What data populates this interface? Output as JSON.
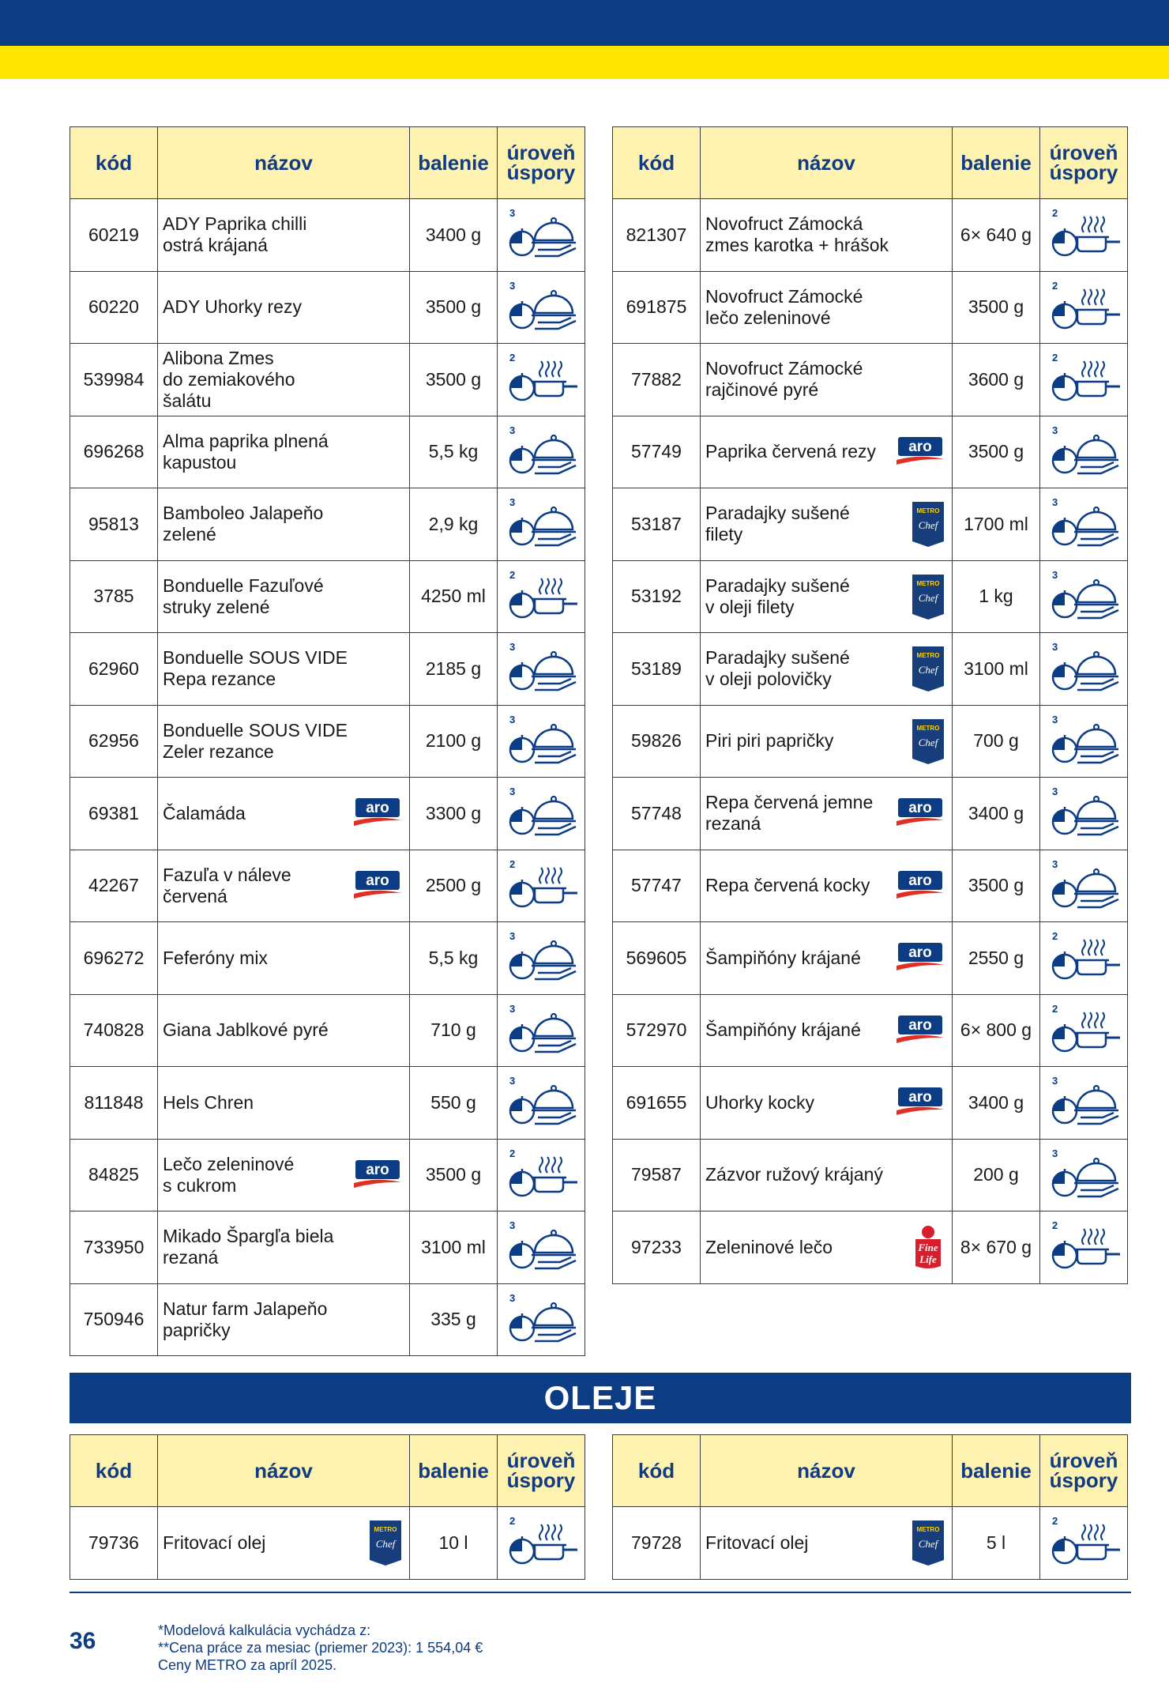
{
  "headers": {
    "code": "kód",
    "name": "názov",
    "pack": "balenie",
    "level": "úroveň\núspory"
  },
  "section_title": "OLEJE",
  "left_rows": [
    {
      "code": "60219",
      "name": "ADY Paprika chilli\nostrá krájaná",
      "pack": "3400 g",
      "level": "3",
      "brand": ""
    },
    {
      "code": "60220",
      "name": "ADY Uhorky rezy",
      "pack": "3500 g",
      "level": "3",
      "brand": ""
    },
    {
      "code": "539984",
      "name": "Alibona Zmes\ndo zemiakového\nšalátu",
      "pack": "3500 g",
      "level": "2",
      "brand": ""
    },
    {
      "code": "696268",
      "name": "Alma paprika plnená\nkapustou",
      "pack": "5,5 kg",
      "level": "3",
      "brand": ""
    },
    {
      "code": "95813",
      "name": "Bamboleo Jalapeňo\nzelené",
      "pack": "2,9 kg",
      "level": "3",
      "brand": ""
    },
    {
      "code": "3785",
      "name": "Bonduelle Fazuľové\nstruky zelené",
      "pack": "4250 ml",
      "level": "2",
      "brand": ""
    },
    {
      "code": "62960",
      "name": "Bonduelle SOUS VIDE\nRepa rezance",
      "pack": "2185 g",
      "level": "3",
      "brand": ""
    },
    {
      "code": "62956",
      "name": "Bonduelle SOUS VIDE\nZeler rezance",
      "pack": "2100 g",
      "level": "3",
      "brand": ""
    },
    {
      "code": "69381",
      "name": "Čalamáda",
      "pack": "3300 g",
      "level": "3",
      "brand": "aro"
    },
    {
      "code": "42267",
      "name": "Fazuľa v náleve\nčervená",
      "pack": "2500 g",
      "level": "2",
      "brand": "aro"
    },
    {
      "code": "696272",
      "name": "Feferóny mix",
      "pack": "5,5 kg",
      "level": "3",
      "brand": ""
    },
    {
      "code": "740828",
      "name": "Giana Jablkové pyré",
      "pack": "710 g",
      "level": "3",
      "brand": ""
    },
    {
      "code": "811848",
      "name": "Hels Chren",
      "pack": "550 g",
      "level": "3",
      "brand": ""
    },
    {
      "code": "84825",
      "name": "Lečo zeleninové\ns cukrom",
      "pack": "3500 g",
      "level": "2",
      "brand": "aro"
    },
    {
      "code": "733950",
      "name": "Mikado Špargľa biela\nrezaná",
      "pack": "3100 ml",
      "level": "3",
      "brand": ""
    },
    {
      "code": "750946",
      "name": "Natur farm Jalapeňo\npapričky",
      "pack": "335 g",
      "level": "3",
      "brand": ""
    }
  ],
  "right_rows": [
    {
      "code": "821307",
      "name": "Novofruct Zámocká\nzmes karotka + hrášok",
      "pack": "6× 640 g",
      "level": "2",
      "brand": ""
    },
    {
      "code": "691875",
      "name": "Novofruct Zámocké\nlečo zeleninové",
      "pack": "3500 g",
      "level": "2",
      "brand": ""
    },
    {
      "code": "77882",
      "name": "Novofruct Zámocké\nrajčinové pyré",
      "pack": "3600 g",
      "level": "2",
      "brand": ""
    },
    {
      "code": "57749",
      "name": "Paprika červená rezy",
      "pack": "3500 g",
      "level": "3",
      "brand": "aro"
    },
    {
      "code": "53187",
      "name": "Paradajky sušené\nfilety",
      "pack": "1700 ml",
      "level": "3",
      "brand": "chef"
    },
    {
      "code": "53192",
      "name": "Paradajky sušené\nv oleji filety",
      "pack": "1 kg",
      "level": "3",
      "brand": "chef"
    },
    {
      "code": "53189",
      "name": "Paradajky sušené\nv oleji polovičky",
      "pack": "3100 ml",
      "level": "3",
      "brand": "chef"
    },
    {
      "code": "59826",
      "name": "Piri piri papričky",
      "pack": "700 g",
      "level": "3",
      "brand": "chef"
    },
    {
      "code": "57748",
      "name": "Repa červená jemne\nrezaná",
      "pack": "3400 g",
      "level": "3",
      "brand": "aro"
    },
    {
      "code": "57747",
      "name": "Repa červená kocky",
      "pack": "3500 g",
      "level": "3",
      "brand": "aro"
    },
    {
      "code": "569605",
      "name": "Šampiňóny krájané",
      "pack": "2550 g",
      "level": "2",
      "brand": "aro"
    },
    {
      "code": "572970",
      "name": "Šampiňóny krájané",
      "pack": "6× 800 g",
      "level": "2",
      "brand": "aro"
    },
    {
      "code": "691655",
      "name": "Uhorky kocky",
      "pack": "3400 g",
      "level": "3",
      "brand": "aro"
    },
    {
      "code": "79587",
      "name": "Zázvor ružový krájaný",
      "pack": "200 g",
      "level": "3",
      "brand": ""
    },
    {
      "code": "97233",
      "name": "Zeleninové lečo",
      "pack": "8× 670 g",
      "level": "2",
      "brand": "fine"
    }
  ],
  "oil_left_rows": [
    {
      "code": "79736",
      "name": "Fritovací olej",
      "pack": "10 l",
      "level": "2",
      "brand": "chef"
    }
  ],
  "oil_right_rows": [
    {
      "code": "79728",
      "name": "Fritovací olej",
      "pack": "5 l",
      "level": "2",
      "brand": "chef"
    }
  ],
  "brands": {
    "aro": {
      "text": "aro"
    },
    "chef": {
      "top": "METRO",
      "bottom": "Chef"
    },
    "fine": {
      "top": "Fine",
      "bottom": "Life"
    }
  },
  "footer": {
    "page_number": "36",
    "notes": [
      "*Modelová kalkulácia vychádza z:",
      "**Cena práce za mesiac (priemer 2023): 1 554,04 €",
      "Ceny METRO za apríl 2025."
    ]
  },
  "colors": {
    "navy": "#0c3c84",
    "yellow": "#ffe600",
    "header_bg": "#fdf2b0",
    "aro_red": "#e03026",
    "fine_red": "#d81e2c"
  }
}
